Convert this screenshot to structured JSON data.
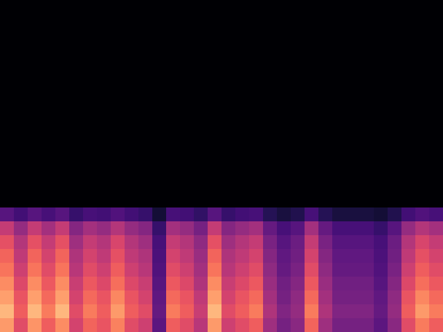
{
  "chart_data": {
    "type": "heatmap",
    "tick_labels": false,
    "values": [
      [
        0,
        0,
        0,
        0,
        0,
        0,
        0,
        0,
        0,
        0,
        0,
        0,
        0,
        0,
        0,
        0,
        0,
        0,
        0,
        0,
        0,
        0,
        0,
        0,
        0,
        0,
        0,
        0,
        0,
        0,
        0,
        0
      ],
      [
        0,
        0,
        0,
        0,
        0,
        0,
        0,
        0,
        0,
        0,
        0,
        0,
        0,
        0,
        0,
        0,
        0,
        0,
        0,
        0,
        0,
        0,
        0,
        0,
        0,
        0,
        0,
        0,
        0,
        0,
        0,
        0
      ],
      [
        0,
        0,
        0,
        0,
        0,
        0,
        0,
        0,
        0,
        0,
        0,
        0,
        0,
        0,
        0,
        0,
        0,
        0,
        0,
        0,
        0,
        0,
        0,
        0,
        0,
        0,
        0,
        0,
        0,
        0,
        0,
        0
      ],
      [
        0,
        0,
        0,
        0,
        0,
        0,
        0,
        0,
        0,
        0,
        0,
        0,
        0,
        0,
        0,
        0,
        0,
        0,
        0,
        0,
        0,
        0,
        0,
        0,
        0,
        0,
        0,
        0,
        0,
        0,
        0,
        0
      ],
      [
        0,
        0,
        0,
        0,
        0,
        0,
        0,
        0,
        0,
        0,
        0,
        0,
        0,
        0,
        0,
        0,
        0,
        0,
        0,
        0,
        0,
        0,
        0,
        0,
        0,
        0,
        0,
        0,
        0,
        0,
        0,
        0
      ],
      [
        0,
        0,
        0,
        0,
        0,
        0,
        0,
        0,
        0,
        0,
        0,
        0,
        0,
        0,
        0,
        0,
        0,
        0,
        0,
        0,
        0,
        0,
        0,
        0,
        0,
        0,
        0,
        0,
        0,
        0,
        0,
        0
      ],
      [
        0,
        0,
        0,
        0,
        0,
        0,
        0,
        0,
        0,
        0,
        0,
        0,
        0,
        0,
        0,
        0,
        0,
        0,
        0,
        0,
        0,
        0,
        0,
        0,
        0,
        0,
        0,
        0,
        0,
        0,
        0,
        0
      ],
      [
        0,
        0,
        0,
        0,
        0,
        0,
        0,
        0,
        0,
        0,
        0,
        0,
        0,
        0,
        0,
        0,
        0,
        0,
        0,
        0,
        0,
        0,
        0,
        0,
        0,
        0,
        0,
        0,
        0,
        0,
        0,
        0
      ],
      [
        0,
        0,
        0,
        0,
        0,
        0,
        0,
        0,
        0,
        0,
        0,
        0,
        0,
        0,
        0,
        0,
        0,
        0,
        0,
        0,
        0,
        0,
        0,
        0,
        0,
        0,
        0,
        0,
        0,
        0,
        0,
        0
      ],
      [
        0,
        0,
        0,
        0,
        0,
        0,
        0,
        0,
        0,
        0,
        0,
        0,
        0,
        0,
        0,
        0,
        0,
        0,
        0,
        0,
        0,
        0,
        0,
        0,
        0,
        0,
        0,
        0,
        0,
        0,
        0,
        0
      ],
      [
        0,
        0,
        0,
        0,
        0,
        0,
        0,
        0,
        0,
        0,
        0,
        0,
        0,
        0,
        0,
        0,
        0,
        0,
        0,
        0,
        0,
        0,
        0,
        0,
        0,
        0,
        0,
        0,
        0,
        0,
        0,
        0
      ],
      [
        0,
        0,
        0,
        0,
        0,
        0,
        0,
        0,
        0,
        0,
        0,
        0,
        0,
        0,
        0,
        0,
        0,
        0,
        0,
        0,
        0,
        0,
        0,
        0,
        0,
        0,
        0,
        0,
        0,
        0,
        0,
        0
      ],
      [
        0,
        0,
        0,
        0,
        0,
        0,
        0,
        0,
        0,
        0,
        0,
        0,
        0,
        0,
        0,
        0,
        0,
        0,
        0,
        0,
        0,
        0,
        0,
        0,
        0,
        0,
        0,
        0,
        0,
        0,
        0,
        0
      ],
      [
        0,
        0,
        0,
        0,
        0,
        0,
        0,
        0,
        0,
        0,
        0,
        0,
        0,
        0,
        0,
        0,
        0,
        0,
        0,
        0,
        0,
        0,
        0,
        0,
        0,
        0,
        0,
        0,
        0,
        0,
        0,
        0
      ],
      [
        0,
        0,
        0,
        0,
        0,
        0,
        0,
        0,
        0,
        0,
        0,
        0,
        0,
        0,
        0,
        0,
        0,
        0,
        0,
        0,
        0,
        0,
        0,
        0,
        0,
        0,
        0,
        0,
        0,
        0,
        0,
        0
      ],
      [
        21,
        17,
        21,
        18,
        21,
        15,
        18,
        17,
        20,
        17,
        15,
        8,
        18,
        17,
        14,
        21,
        15,
        17,
        18,
        12,
        9,
        11,
        18,
        12,
        9,
        9,
        9,
        8,
        11,
        17,
        20,
        18
      ],
      [
        42,
        33,
        42,
        36,
        42,
        30,
        36,
        33,
        39,
        33,
        30,
        15,
        36,
        33,
        27,
        42,
        30,
        33,
        36,
        24,
        18,
        21,
        36,
        24,
        18,
        18,
        18,
        15,
        21,
        33,
        39,
        36
      ],
      [
        49,
        39,
        49,
        42,
        49,
        35,
        42,
        39,
        46,
        39,
        35,
        18,
        42,
        39,
        32,
        49,
        35,
        39,
        42,
        28,
        21,
        25,
        42,
        28,
        21,
        21,
        21,
        18,
        25,
        39,
        46,
        42
      ],
      [
        53,
        41,
        53,
        45,
        53,
        38,
        45,
        41,
        49,
        41,
        38,
        19,
        45,
        41,
        34,
        53,
        38,
        41,
        45,
        30,
        23,
        26,
        45,
        30,
        23,
        23,
        23,
        19,
        26,
        41,
        49,
        45
      ],
      [
        56,
        44,
        56,
        48,
        56,
        40,
        48,
        44,
        52,
        44,
        40,
        20,
        48,
        44,
        36,
        56,
        40,
        44,
        48,
        32,
        24,
        28,
        48,
        32,
        24,
        24,
        24,
        20,
        28,
        44,
        52,
        48
      ],
      [
        60,
        47,
        60,
        51,
        60,
        43,
        51,
        47,
        55,
        47,
        43,
        21,
        51,
        47,
        38,
        60,
        43,
        47,
        51,
        34,
        26,
        30,
        51,
        34,
        26,
        26,
        26,
        21,
        30,
        47,
        55,
        51
      ],
      [
        63,
        50,
        63,
        54,
        63,
        45,
        54,
        50,
        59,
        50,
        45,
        23,
        54,
        50,
        41,
        63,
        45,
        50,
        54,
        36,
        27,
        32,
        54,
        36,
        27,
        27,
        27,
        23,
        32,
        50,
        59,
        54
      ],
      [
        67,
        52,
        67,
        57,
        67,
        48,
        57,
        52,
        62,
        52,
        48,
        24,
        57,
        52,
        43,
        67,
        48,
        52,
        57,
        38,
        29,
        33,
        57,
        38,
        29,
        29,
        29,
        24,
        33,
        52,
        62,
        57
      ],
      [
        62,
        48,
        61,
        52,
        60,
        45,
        53,
        50,
        58,
        48,
        44,
        22,
        52,
        48,
        40,
        62,
        44,
        48,
        52,
        35,
        27,
        31,
        53,
        35,
        27,
        27,
        27,
        22,
        31,
        48,
        57,
        52
      ]
    ]
  }
}
